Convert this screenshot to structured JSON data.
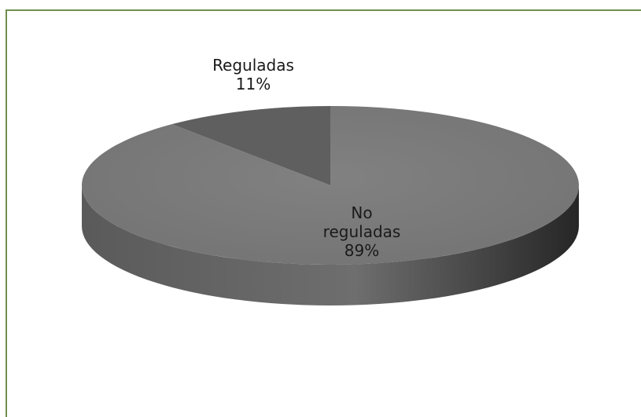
{
  "chart_data": {
    "type": "pie",
    "style": "3d",
    "categories": [
      "Reguladas",
      "No reguladas"
    ],
    "values": [
      11,
      89
    ],
    "labels": [
      [
        "Reguladas",
        "11%"
      ],
      [
        "No",
        "reguladas",
        "89%"
      ]
    ],
    "colors": {
      "top": "#7b7b7b",
      "side_light": "#6a6a6a",
      "side_dark": "#2e2e2e",
      "wedge_shade": "#5f5f5f",
      "frame": "#6f8f4e"
    }
  }
}
